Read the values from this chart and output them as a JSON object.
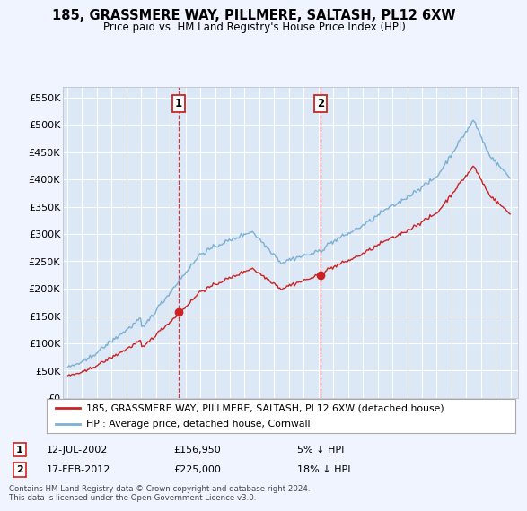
{
  "title": "185, GRASSMERE WAY, PILLMERE, SALTASH, PL12 6XW",
  "subtitle": "Price paid vs. HM Land Registry's House Price Index (HPI)",
  "property_label": "185, GRASSMERE WAY, PILLMERE, SALTASH, PL12 6XW (detached house)",
  "hpi_label": "HPI: Average price, detached house, Cornwall",
  "property_color": "#cc2222",
  "hpi_color": "#7bafd4",
  "background_color": "#f0f4ff",
  "plot_bg_color": "#dce8f5",
  "grid_color": "#ffffff",
  "transaction1_date": "12-JUL-2002",
  "transaction1_price": "£156,950",
  "transaction1_note": "5% ↓ HPI",
  "transaction2_date": "17-FEB-2012",
  "transaction2_price": "£225,000",
  "transaction2_note": "18% ↓ HPI",
  "ylim": [
    0,
    570000
  ],
  "yticks": [
    0,
    50000,
    100000,
    150000,
    200000,
    250000,
    300000,
    350000,
    400000,
    450000,
    500000,
    550000
  ],
  "footer": "Contains HM Land Registry data © Crown copyright and database right 2024.\nThis data is licensed under the Open Government Licence v3.0.",
  "vline1_x": 2002.54,
  "vline2_x": 2012.12,
  "marker1_x": 2002.54,
  "marker1_y": 156950,
  "marker2_x": 2012.12,
  "marker2_y": 225000,
  "xlim_left": 1994.7,
  "xlim_right": 2025.5
}
